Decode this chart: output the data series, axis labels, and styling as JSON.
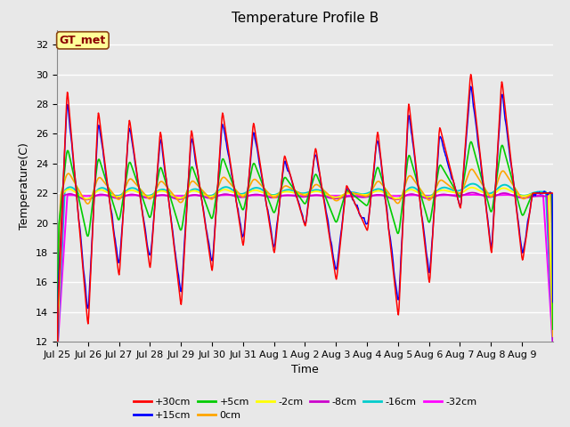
{
  "title": "Temperature Profile B",
  "xlabel": "Time",
  "ylabel": "Temperature(C)",
  "ylim": [
    12,
    33
  ],
  "yticks": [
    12,
    14,
    16,
    18,
    20,
    22,
    24,
    26,
    28,
    30,
    32
  ],
  "date_labels": [
    "Jul 25",
    "Jul 26",
    "Jul 27",
    "Jul 28",
    "Jul 29",
    "Jul 30",
    "Jul 31",
    "Aug 1",
    "Aug 2",
    "Aug 3",
    "Aug 4",
    "Aug 5",
    "Aug 6",
    "Aug 7",
    "Aug 8",
    "Aug 9"
  ],
  "series": [
    {
      "label": "+30cm",
      "color": "#FF0000"
    },
    {
      "label": "+15cm",
      "color": "#0000FF"
    },
    {
      "label": "+5cm",
      "color": "#00CC00"
    },
    {
      "label": "0cm",
      "color": "#FFA500"
    },
    {
      "label": "-2cm",
      "color": "#FFFF00"
    },
    {
      "label": "-8cm",
      "color": "#CC00CC"
    },
    {
      "label": "-16cm",
      "color": "#00CCCC"
    },
    {
      "label": "-32cm",
      "color": "#FF00FF"
    }
  ],
  "annotation_text": "GT_met",
  "annotation_bg": "#FFFF99",
  "annotation_border": "#8B4513",
  "bg_color": "#E8E8E8",
  "grid_color": "#FFFFFF",
  "title_fontsize": 11,
  "axis_fontsize": 9,
  "tick_fontsize": 8,
  "legend_fontsize": 8,
  "peaks_30": [
    28.8,
    27.4,
    26.9,
    26.1,
    26.2,
    27.4,
    26.7,
    24.5,
    25.0,
    22.5,
    26.1,
    28.0,
    26.4,
    30.0,
    29.5,
    22.0
  ],
  "troughs_30": [
    13.2,
    16.5,
    17.0,
    14.5,
    16.8,
    18.5,
    18.0,
    19.8,
    16.2,
    19.5,
    13.8,
    16.0,
    21.0,
    18.0,
    17.5,
    22.0
  ],
  "base_temp": 22.0,
  "flat_lines": {
    "sm2_base": 22.0,
    "sm8_base": 21.8,
    "sm16_base": 22.1,
    "sm32_base": 21.85
  }
}
